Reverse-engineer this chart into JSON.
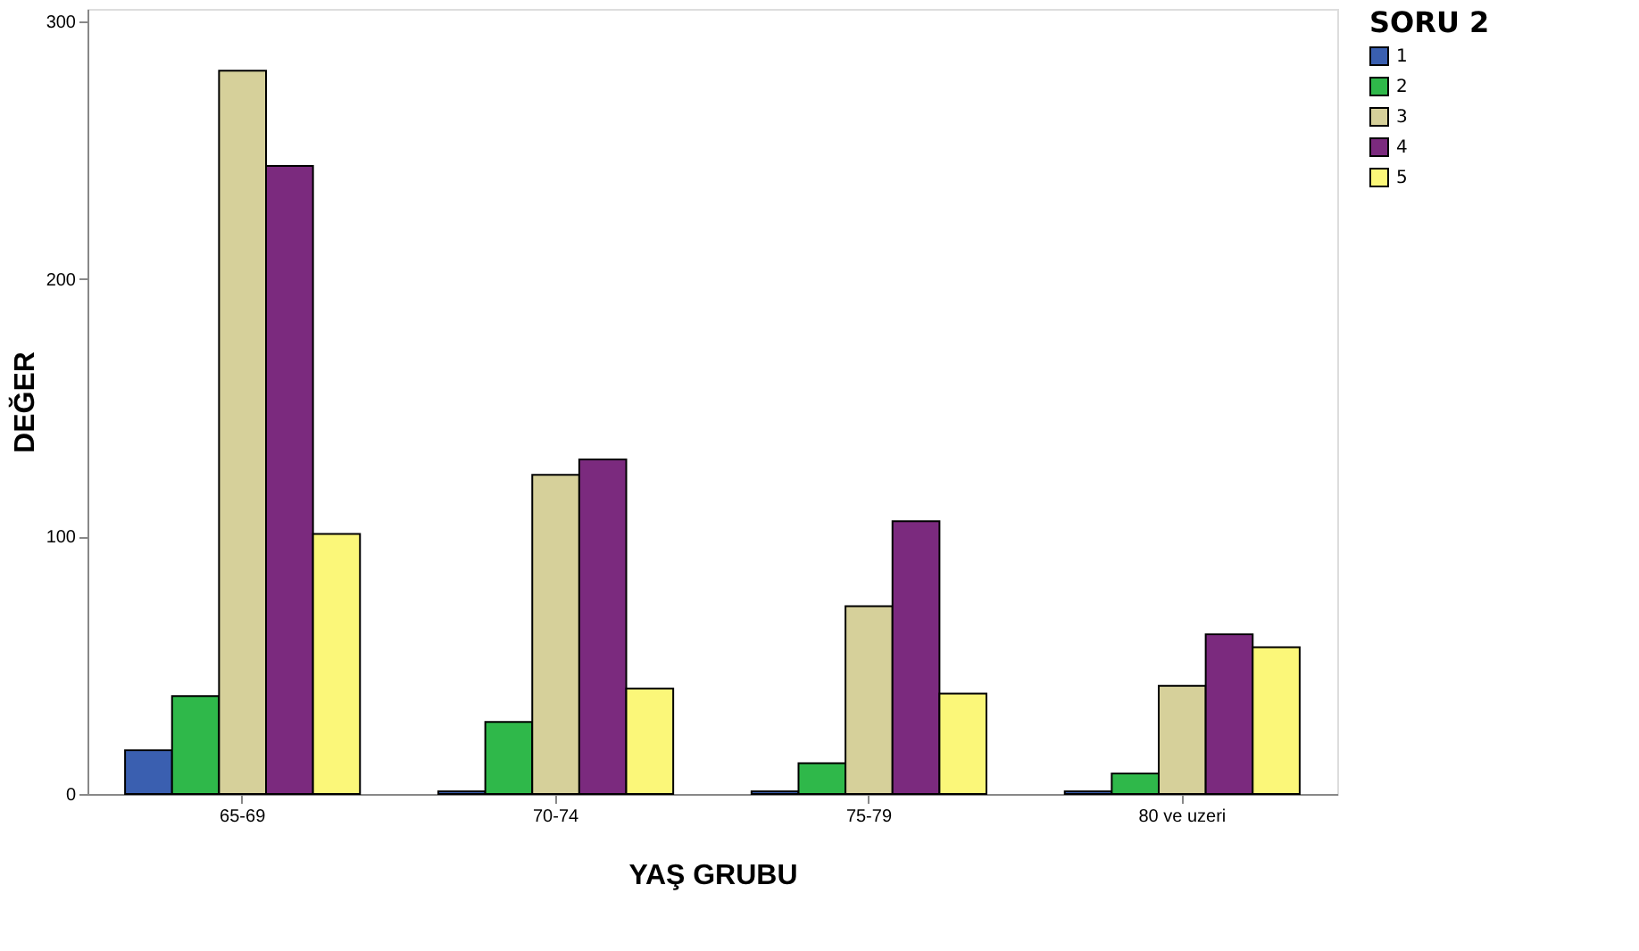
{
  "chart_data": {
    "type": "bar",
    "xlabel": "YAŞ GRUBU",
    "ylabel": "DEĞER",
    "legend_title": "SORU 2",
    "legend": "top right",
    "grid": false,
    "categories": [
      "65-69",
      "70-74",
      "75-79",
      "80 ve uzeri"
    ],
    "ylim": [
      0,
      305
    ],
    "yticks": [
      0,
      100,
      200,
      300
    ],
    "series": [
      {
        "name": "1",
        "color": "#3a5fb0",
        "values": [
          17,
          1,
          1,
          1
        ]
      },
      {
        "name": "2",
        "color": "#2fb84a",
        "values": [
          38,
          28,
          12,
          8
        ]
      },
      {
        "name": "3",
        "color": "#d6d09a",
        "values": [
          281,
          124,
          73,
          42
        ]
      },
      {
        "name": "4",
        "color": "#7b2a7e",
        "values": [
          244,
          130,
          106,
          62
        ]
      },
      {
        "name": "5",
        "color": "#fbf779",
        "values": [
          101,
          41,
          39,
          57
        ]
      }
    ]
  }
}
